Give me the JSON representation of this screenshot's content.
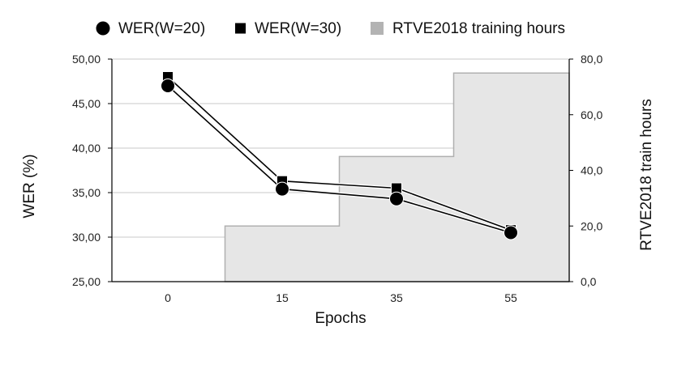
{
  "chart_data": {
    "type": "line",
    "categories": [
      "0",
      "15",
      "35",
      "55"
    ],
    "series": [
      {
        "name": "WER(W=20)",
        "values": [
          47.0,
          35.4,
          34.3,
          30.5
        ],
        "marker": "circle",
        "color": "#000000"
      },
      {
        "name": "WER(W=30)",
        "values": [
          48.0,
          36.3,
          35.5,
          30.8
        ],
        "marker": "square",
        "color": "#000000"
      }
    ],
    "bar_series": {
      "name": "RTVE2018 training hours",
      "steps": [
        {
          "from": "15",
          "value": 20.0
        },
        {
          "from": "35",
          "value": 45.0
        },
        {
          "from": "55",
          "value": 75.0
        }
      ],
      "fill": "#e6e6e6",
      "stroke": "#b0b0b0",
      "legend_color": "#b3b3b3"
    },
    "xlabel": "Epochs",
    "ylabel": "WER (%)",
    "y2label": "RTVE2018 train hours",
    "ylim": [
      25,
      50
    ],
    "y2lim": [
      0,
      80
    ],
    "yticks": [
      "25,00",
      "30,00",
      "35,00",
      "40,00",
      "45,00",
      "50,00"
    ],
    "y2ticks": [
      "0,0",
      "20,0",
      "40,0",
      "60,0",
      "80,0"
    ],
    "grid": true,
    "legend_position": "top"
  }
}
